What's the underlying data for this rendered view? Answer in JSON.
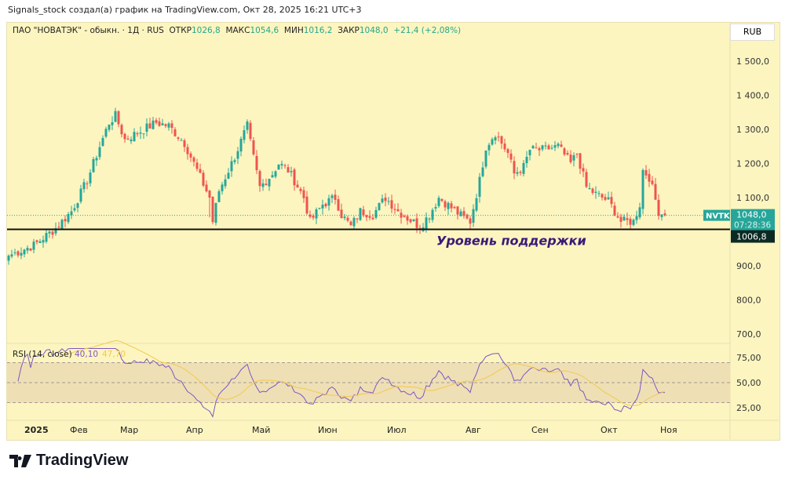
{
  "header": {
    "attribution": "Signals_stock создал(а) график на TradingView.com, Окт 28, 2025 16:21 UTC+3"
  },
  "legend": {
    "name": "ПАО \"НОВАТЭК\" - обыкн. · 1Д · RUS",
    "open_label": "ОТКР",
    "open": "1026,8",
    "high_label": "МАКС",
    "high": "1054,6",
    "low_label": "МИН",
    "low": "1016,2",
    "close_label": "ЗАКР",
    "close": "1048,0",
    "change": "+21,4 (+2,08%)"
  },
  "currency": "RUB",
  "logo": "TradingView",
  "colors": {
    "up": "#26a69a",
    "down": "#ef5350",
    "rsi": "#7e57c2",
    "rsi_ma": "#f2c94c",
    "bg": "#fdf5c0",
    "annotation": "#3a1a78"
  },
  "chart_data": [
    {
      "type": "candlestick",
      "title": "NVTK 1D",
      "ylim": [
        700,
        1500
      ],
      "yticks": [
        "1 500,0",
        "1 400,0",
        "1 300,0",
        "1 200,0",
        "1 100,0",
        "900,0",
        "800,0",
        "700,0"
      ],
      "ytick_values": [
        1500,
        1400,
        1300,
        1200,
        1100,
        900,
        800,
        700
      ],
      "xticks": [
        "2025",
        "Фев",
        "Мар",
        "Апр",
        "Май",
        "Июн",
        "Июл",
        "Авг",
        "Сен",
        "Окт",
        "Ноя"
      ],
      "xtick_days": [
        4,
        21,
        37,
        58,
        79,
        100,
        122,
        147,
        168,
        190,
        209
      ],
      "close_anchors": [
        [
          0,
          930
        ],
        [
          8,
          960
        ],
        [
          15,
          1010
        ],
        [
          20,
          1060
        ],
        [
          25,
          1150
        ],
        [
          29,
          1250
        ],
        [
          32,
          1320
        ],
        [
          34,
          1340
        ],
        [
          37,
          1270
        ],
        [
          41,
          1290
        ],
        [
          47,
          1320
        ],
        [
          51,
          1310
        ],
        [
          56,
          1260
        ],
        [
          60,
          1180
        ],
        [
          64,
          1100
        ],
        [
          65,
          1030
        ],
        [
          67,
          1120
        ],
        [
          72,
          1220
        ],
        [
          76,
          1310
        ],
        [
          77,
          1260
        ],
        [
          80,
          1130
        ],
        [
          84,
          1170
        ],
        [
          86,
          1200
        ],
        [
          89,
          1180
        ],
        [
          91,
          1150
        ],
        [
          94,
          1100
        ],
        [
          96,
          1030
        ],
        [
          100,
          1080
        ],
        [
          104,
          1100
        ],
        [
          106,
          1050
        ],
        [
          109,
          1015
        ],
        [
          112,
          1060
        ],
        [
          116,
          1050
        ],
        [
          120,
          1100
        ],
        [
          124,
          1060
        ],
        [
          127,
          1040
        ],
        [
          131,
          1015
        ],
        [
          134,
          1050
        ],
        [
          137,
          1100
        ],
        [
          141,
          1070
        ],
        [
          145,
          1040
        ],
        [
          147,
          1030
        ],
        [
          150,
          1150
        ],
        [
          152,
          1250
        ],
        [
          155,
          1290
        ],
        [
          159,
          1230
        ],
        [
          161,
          1170
        ],
        [
          164,
          1190
        ],
        [
          166,
          1240
        ],
        [
          170,
          1240
        ],
        [
          175,
          1250
        ],
        [
          179,
          1200
        ],
        [
          181,
          1230
        ],
        [
          184,
          1130
        ],
        [
          187,
          1110
        ],
        [
          191,
          1090
        ],
        [
          195,
          1030
        ],
        [
          199,
          1030
        ],
        [
          201,
          1080
        ],
        [
          202,
          1180
        ],
        [
          204,
          1160
        ],
        [
          207,
          1060
        ],
        [
          209,
          1048
        ]
      ],
      "last_price": {
        "symbol": "NVTK",
        "value": "1048,0",
        "countdown": "07:28:36"
      },
      "support": {
        "value": 1006.8,
        "label": "1006,8",
        "annotation": "Уровень поддержки"
      }
    },
    {
      "type": "line",
      "title": "RSI (14, close)",
      "values_label": "40,10",
      "ma_label": "47,70",
      "ylim": [
        15,
        85
      ],
      "yticks": [
        "75,00",
        "50,00",
        "25,00"
      ],
      "ytick_values": [
        75,
        50,
        25
      ],
      "bands": [
        70,
        50,
        30
      ]
    }
  ]
}
